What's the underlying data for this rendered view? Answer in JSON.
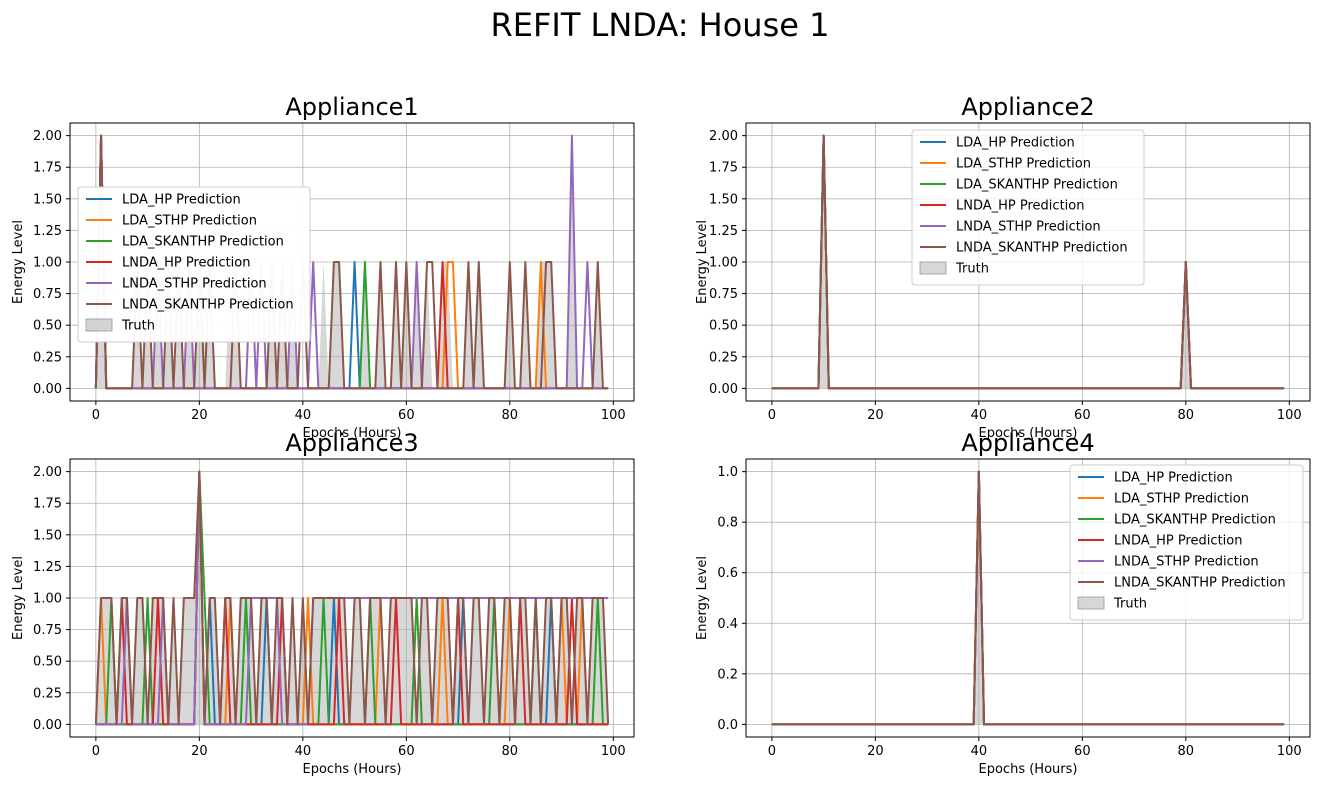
{
  "suptitle": "REFIT LNDA: House 1",
  "series_names": [
    "LDA_HP Prediction",
    "LDA_STHP Prediction",
    "LDA_SKANTHP Prediction",
    "LNDA_HP Prediction",
    "LNDA_STHP Prediction",
    "LNDA_SKANTHP Prediction"
  ],
  "series_colors": [
    "#1f77b4",
    "#ff7f0e",
    "#2ca02c",
    "#d62728",
    "#9467bd",
    "#8c564b"
  ],
  "truth_label": "Truth",
  "truth_color": "#b0b0b0",
  "chart_data": [
    {
      "type": "line",
      "title": "Appliance1",
      "xlabel": "Epochs (Hours)",
      "ylabel": "Energy Level",
      "xlim": [
        -5,
        104
      ],
      "ylim": [
        -0.1,
        2.1
      ],
      "xticks": [
        0,
        20,
        40,
        60,
        80,
        100
      ],
      "yticks": [
        0.0,
        0.25,
        0.5,
        0.75,
        1.0,
        1.25,
        1.5,
        1.75,
        2.0
      ],
      "ytick_labels": [
        "0.00",
        "0.25",
        "0.50",
        "0.75",
        "1.00",
        "1.25",
        "1.50",
        "1.75",
        "2.00"
      ],
      "grid": true,
      "legend": "center-left",
      "n": 100,
      "truth": {
        "1": 2,
        "8": 1,
        "10": 1,
        "12": 1,
        "14": 1,
        "16": 1,
        "18": 1,
        "20": 1,
        "21": 1,
        "22": 1,
        "26": 1,
        "27": 1,
        "34": 1,
        "36": 1,
        "38": 1,
        "44": 1,
        "46": 1,
        "47": 1,
        "52": 1,
        "55": 1,
        "58": 1,
        "60": 1,
        "62": 1,
        "64": 1,
        "67": 1,
        "68": 1,
        "72": 1,
        "74": 1,
        "80": 1,
        "83": 1,
        "86": 1,
        "87": 1,
        "88": 1,
        "92": 2,
        "97": 1
      },
      "series": [
        {
          "name": "LDA_HP Prediction",
          "peaks": {
            "1": 2,
            "50": 1
          }
        },
        {
          "name": "LDA_STHP Prediction",
          "peaks": {
            "1": 2,
            "68": 1,
            "69": 1,
            "86": 1
          }
        },
        {
          "name": "LDA_SKANTHP Prediction",
          "peaks": {
            "1": 2,
            "52": 1
          }
        },
        {
          "name": "LNDA_HP Prediction",
          "peaks": {
            "1": 2,
            "67": 1
          }
        },
        {
          "name": "LNDA_STHP Prediction",
          "peaks": {
            "1": 2,
            "12": 1,
            "18": 1,
            "30": 1,
            "32": 1,
            "38": 1,
            "42": 1,
            "62": 1,
            "92": 2,
            "95": 1
          }
        },
        {
          "name": "LNDA_SKANTHP Prediction",
          "peaks": {
            "1": 2,
            "8": 1,
            "10": 1,
            "14": 1,
            "16": 1,
            "20": 1,
            "22": 1,
            "27": 1,
            "34": 1,
            "36": 1,
            "40": 1,
            "46": 1,
            "47": 1,
            "55": 1,
            "58": 1,
            "60": 1,
            "64": 1,
            "65": 1,
            "72": 1,
            "74": 1,
            "80": 1,
            "83": 1,
            "87": 1,
            "88": 1,
            "97": 1
          }
        }
      ]
    },
    {
      "type": "line",
      "title": "Appliance2",
      "xlabel": "Epochs (Hours)",
      "ylabel": "Energy Level",
      "xlim": [
        -5,
        104
      ],
      "ylim": [
        -0.1,
        2.1
      ],
      "xticks": [
        0,
        20,
        40,
        60,
        80,
        100
      ],
      "yticks": [
        0.0,
        0.25,
        0.5,
        0.75,
        1.0,
        1.25,
        1.5,
        1.75,
        2.0
      ],
      "ytick_labels": [
        "0.00",
        "0.25",
        "0.50",
        "0.75",
        "1.00",
        "1.25",
        "1.50",
        "1.75",
        "2.00"
      ],
      "grid": true,
      "legend": "upper-center",
      "n": 100,
      "truth": {
        "10": 2,
        "80": 1
      },
      "series": [
        {
          "name": "LDA_HP Prediction",
          "peaks": {
            "10": 2,
            "80": 1
          }
        },
        {
          "name": "LDA_STHP Prediction",
          "peaks": {
            "10": 2,
            "80": 1
          }
        },
        {
          "name": "LDA_SKANTHP Prediction",
          "peaks": {
            "10": 2,
            "80": 1
          }
        },
        {
          "name": "LNDA_HP Prediction",
          "peaks": {
            "10": 2,
            "80": 1
          }
        },
        {
          "name": "LNDA_STHP Prediction",
          "peaks": {
            "10": 2,
            "80": 1
          }
        },
        {
          "name": "LNDA_SKANTHP Prediction",
          "peaks": {
            "10": 2,
            "80": 1
          }
        }
      ]
    },
    {
      "type": "line",
      "title": "Appliance3",
      "xlabel": "Epochs (Hours)",
      "ylabel": "Energy Level",
      "xlim": [
        -5,
        104
      ],
      "ylim": [
        -0.1,
        2.1
      ],
      "xticks": [
        0,
        20,
        40,
        60,
        80,
        100
      ],
      "yticks": [
        0.0,
        0.25,
        0.5,
        0.75,
        1.0,
        1.25,
        1.5,
        1.75,
        2.0
      ],
      "ytick_labels": [
        "0.00",
        "0.25",
        "0.50",
        "0.75",
        "1.00",
        "1.25",
        "1.50",
        "1.75",
        "2.00"
      ],
      "grid": true,
      "legend": "center-left",
      "n": 100,
      "truth": {
        "1": 1,
        "2": 1,
        "3": 1,
        "5": 1,
        "6": 1,
        "8": 1,
        "9": 1,
        "11": 1,
        "12": 1,
        "13": 1,
        "15": 1,
        "17": 1,
        "18": 1,
        "19": 1,
        "20": 2,
        "22": 1,
        "23": 1,
        "25": 1,
        "26": 1,
        "28": 1,
        "29": 1,
        "30": 1,
        "32": 1,
        "33": 1,
        "35": 1,
        "36": 1,
        "38": 1,
        "40": 1,
        "42": 1,
        "43": 1,
        "44": 1,
        "45": 1,
        "46": 1,
        "47": 1,
        "48": 1,
        "50": 1,
        "51": 1,
        "53": 1,
        "54": 1,
        "55": 1,
        "57": 1,
        "58": 1,
        "59": 1,
        "60": 1,
        "61": 1,
        "63": 1,
        "64": 1,
        "66": 1,
        "67": 1,
        "68": 1,
        "70": 1,
        "71": 1,
        "73": 1,
        "74": 1,
        "76": 1,
        "77": 1,
        "79": 1,
        "80": 1,
        "82": 1,
        "83": 1,
        "85": 1,
        "87": 1,
        "88": 1,
        "90": 1,
        "91": 1,
        "93": 1,
        "94": 1,
        "96": 1,
        "97": 1,
        "98": 1
      },
      "series": [
        {
          "name": "LDA_HP Prediction",
          "peaks": {
            "20": 2,
            "22": 1,
            "33": 1,
            "46": 1,
            "71": 1,
            "88": 1
          }
        },
        {
          "name": "LDA_STHP Prediction",
          "peaks": {
            "1": 1,
            "20": 2,
            "26": 1,
            "41": 1,
            "55": 1,
            "67": 1,
            "80": 1,
            "90": 1,
            "94": 1
          }
        },
        {
          "name": "LDA_SKANTHP Prediction",
          "peaks": {
            "3": 1,
            "10": 1,
            "20": 2,
            "21": 1,
            "29": 1,
            "44": 1,
            "53": 1,
            "62": 1,
            "77": 1,
            "85": 1,
            "97": 1
          }
        },
        {
          "name": "LNDA_HP Prediction",
          "peaks": {
            "5": 1,
            "12": 1,
            "20": 2,
            "25": 1,
            "36": 1,
            "47": 1,
            "58": 1,
            "70": 1,
            "82": 1,
            "92": 1
          }
        },
        {
          "name": "LNDA_STHP Prediction",
          "peaks": {
            "6": 1,
            "13": 1,
            "20": 2,
            "30": 1,
            "31": 1,
            "32": 1,
            "33": 1,
            "34": 1,
            "35": 1,
            "42": 1,
            "43": 1,
            "44": 1,
            "45": 1,
            "46": 1,
            "47": 1,
            "48": 1,
            "49": 1,
            "50": 1,
            "51": 1,
            "52": 1,
            "53": 1,
            "54": 1,
            "55": 1,
            "56": 1,
            "57": 1,
            "58": 1,
            "59": 1,
            "60": 1,
            "61": 1,
            "62": 1,
            "63": 1,
            "64": 1,
            "65": 1,
            "66": 1,
            "67": 1,
            "68": 1,
            "69": 1,
            "70": 1,
            "71": 1,
            "72": 1,
            "73": 1,
            "74": 1,
            "75": 1,
            "76": 1,
            "77": 1,
            "78": 1,
            "79": 1,
            "80": 1,
            "81": 1,
            "82": 1,
            "83": 1,
            "84": 1,
            "85": 1,
            "86": 1,
            "87": 1,
            "88": 1,
            "89": 1,
            "90": 1,
            "91": 1,
            "92": 1,
            "93": 1,
            "94": 1,
            "95": 1,
            "96": 1,
            "97": 1,
            "98": 1,
            "99": 1
          }
        },
        {
          "name": "LNDA_SKANTHP Prediction",
          "peaks": {
            "1": 1,
            "2": 1,
            "3": 1,
            "5": 1,
            "6": 1,
            "8": 1,
            "9": 1,
            "11": 1,
            "12": 1,
            "13": 1,
            "15": 1,
            "17": 1,
            "18": 1,
            "19": 1,
            "20": 2,
            "22": 1,
            "23": 1,
            "25": 1,
            "26": 1,
            "28": 1,
            "29": 1,
            "30": 1,
            "32": 1,
            "33": 1,
            "35": 1,
            "36": 1,
            "38": 1,
            "40": 1,
            "42": 1,
            "43": 1,
            "44": 1,
            "45": 1,
            "46": 1,
            "47": 1,
            "48": 1,
            "50": 1,
            "51": 1,
            "53": 1,
            "54": 1,
            "55": 1,
            "57": 1,
            "58": 1,
            "59": 1,
            "60": 1,
            "61": 1,
            "63": 1,
            "64": 1,
            "66": 1,
            "67": 1,
            "68": 1,
            "70": 1,
            "71": 1,
            "73": 1,
            "74": 1,
            "76": 1,
            "77": 1,
            "79": 1,
            "80": 1,
            "82": 1,
            "83": 1,
            "85": 1,
            "87": 1,
            "88": 1,
            "90": 1,
            "91": 1,
            "93": 1,
            "94": 1,
            "96": 1,
            "97": 1,
            "98": 1
          }
        }
      ]
    },
    {
      "type": "line",
      "title": "Appliance4",
      "xlabel": "Epochs (Hours)",
      "ylabel": "Energy Level",
      "xlim": [
        -5,
        104
      ],
      "ylim": [
        -0.05,
        1.05
      ],
      "xticks": [
        0,
        20,
        40,
        60,
        80,
        100
      ],
      "yticks": [
        0.0,
        0.2,
        0.4,
        0.6,
        0.8,
        1.0
      ],
      "ytick_labels": [
        "0.0",
        "0.2",
        "0.4",
        "0.6",
        "0.8",
        "1.0"
      ],
      "grid": true,
      "legend": "upper-right",
      "n": 100,
      "truth": {
        "40": 1
      },
      "series": [
        {
          "name": "LDA_HP Prediction",
          "peaks": {
            "40": 1
          }
        },
        {
          "name": "LDA_STHP Prediction",
          "peaks": {
            "40": 1
          }
        },
        {
          "name": "LDA_SKANTHP Prediction",
          "peaks": {
            "40": 1
          }
        },
        {
          "name": "LNDA_HP Prediction",
          "peaks": {
            "40": 1
          }
        },
        {
          "name": "LNDA_STHP Prediction",
          "peaks": {
            "40": 1
          }
        },
        {
          "name": "LNDA_SKANTHP Prediction",
          "peaks": {
            "40": 1
          }
        }
      ]
    }
  ]
}
